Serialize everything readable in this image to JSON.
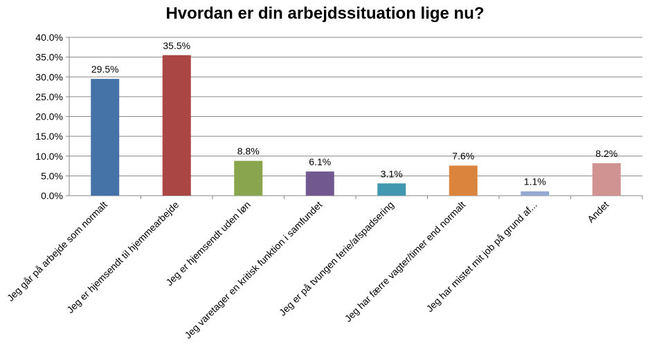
{
  "chart_data": {
    "type": "bar",
    "title": "Hvordan er din arbejdssituation lige nu?",
    "categories": [
      "Jeg går på arbejde som normalt",
      "Jeg er hjemsendt til hjemmearbejde",
      "Jeg er hjemsendt uden løn",
      "Jeg varetager en kritisk funktion i samfundet",
      "Jeg er på tvungen ferie/afspadsering",
      "Jeg har færre vagter/timer end normalt",
      "Jeg har mistet mit job på grund af...",
      "Andet"
    ],
    "values": [
      29.5,
      35.5,
      8.8,
      6.1,
      3.1,
      7.6,
      1.1,
      8.2
    ],
    "value_labels": [
      "29.5%",
      "35.5%",
      "8.8%",
      "6.1%",
      "3.1%",
      "7.6%",
      "1.1%",
      "8.2%"
    ],
    "colors": [
      "#4572A7",
      "#AA4643",
      "#89A54E",
      "#71588F",
      "#4198AF",
      "#DB843D",
      "#93A9CF",
      "#D19392"
    ],
    "ylim": [
      0,
      40
    ],
    "yticks": [
      0,
      5,
      10,
      15,
      20,
      25,
      30,
      35,
      40
    ],
    "ytick_labels": [
      "0.0%",
      "5.0%",
      "10.0%",
      "15.0%",
      "20.0%",
      "25.0%",
      "30.0%",
      "35.0%",
      "40.0%"
    ],
    "xlabel": "",
    "ylabel": "",
    "grid": true,
    "legend": false
  }
}
